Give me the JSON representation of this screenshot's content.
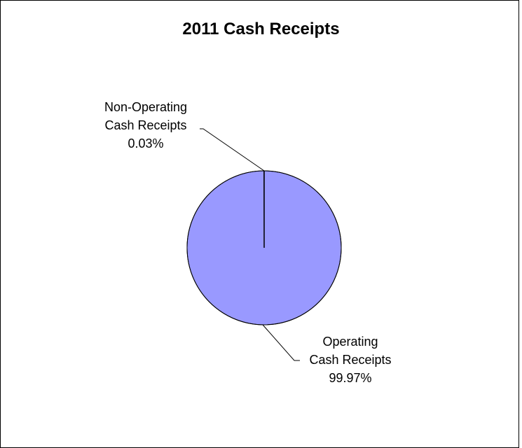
{
  "chart_data": {
    "type": "pie",
    "title": "2011 Cash Receipts",
    "slices": [
      {
        "name_line1": "Non-Operating",
        "name_line2": "Cash Receipts",
        "value": 0.03,
        "percent_label": "0.03%",
        "color": "#ffffff"
      },
      {
        "name_line1": "Operating",
        "name_line2": "Cash Receipts",
        "value": 99.97,
        "percent_label": "99.97%",
        "color": "#9999ff"
      }
    ]
  },
  "colors": {
    "border": "#000000",
    "background": "#ffffff",
    "operating_fill": "#9999ff"
  }
}
